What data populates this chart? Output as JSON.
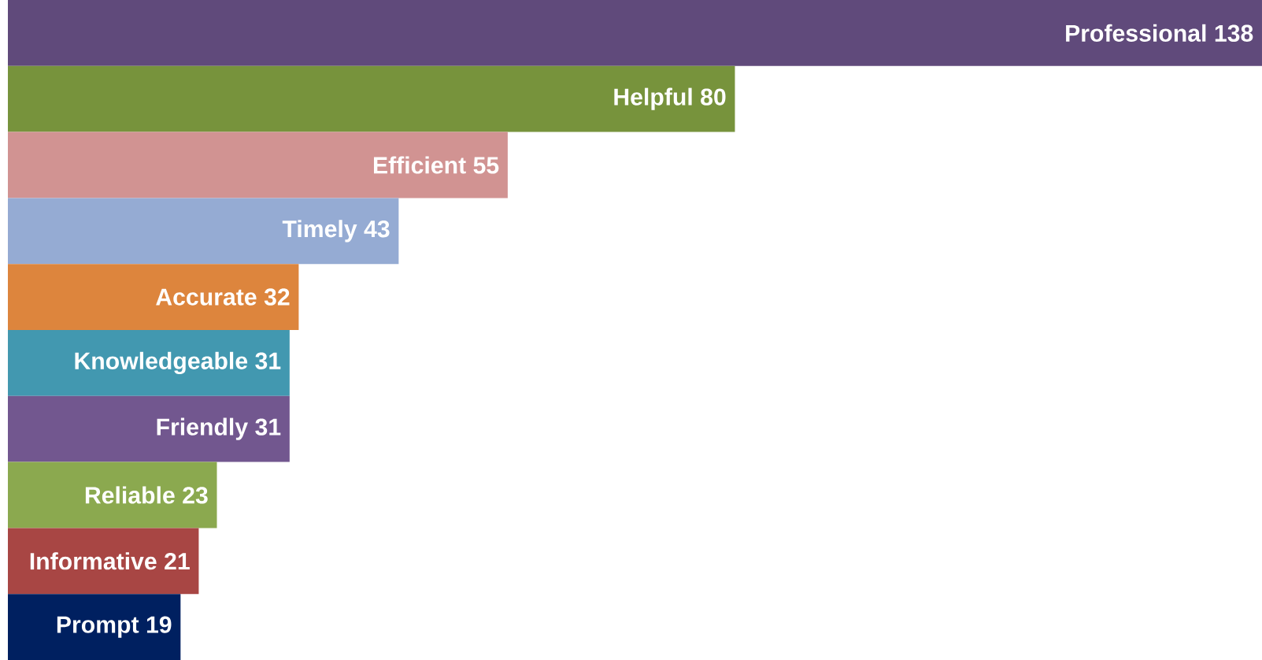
{
  "chart_data": {
    "type": "bar",
    "orientation": "horizontal",
    "categories": [
      "Professional",
      "Helpful",
      "Efficient",
      "Timely",
      "Accurate",
      "Knowledgeable",
      "Friendly",
      "Reliable",
      "Informative",
      "Prompt"
    ],
    "values": [
      138,
      80,
      55,
      43,
      32,
      31,
      31,
      23,
      21,
      19
    ],
    "colors": [
      "#604a7b",
      "#77933c",
      "#d19392",
      "#95abd3",
      "#dd853d",
      "#4298b0",
      "#72578f",
      "#8ba94f",
      "#a84644",
      "#002060"
    ],
    "data_labels": true
  }
}
